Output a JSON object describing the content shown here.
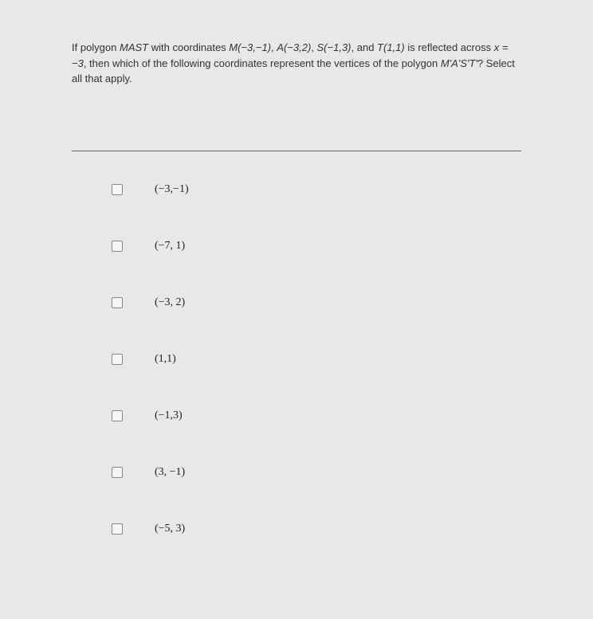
{
  "question": {
    "text_prefix": "If polygon ",
    "polygon_name": "MAST",
    "text_mid1": " with coordinates ",
    "coord_M": "M(−3,−1)",
    "sep1": ", ",
    "coord_A": "A(−3,2)",
    "sep2": ", ",
    "coord_S": "S(−1,3)",
    "sep3": ", and ",
    "coord_T": "T(1,1)",
    "text_mid2": " is reflected across ",
    "reflect_line": "x = −3",
    "text_mid3": ", then which of the following coordinates represent the vertices of the polygon ",
    "polygon_prime": "M'A'S'T'",
    "text_end": "? Select all that apply."
  },
  "options": [
    {
      "label": "(−3,−1)"
    },
    {
      "label": "(−7, 1)"
    },
    {
      "label": "(−3, 2)"
    },
    {
      "label": "(1,1)"
    },
    {
      "label": "(−1,3)"
    },
    {
      "label": "(3, −1)"
    },
    {
      "label": "(−5, 3)"
    }
  ],
  "colors": {
    "background": "#e8e8e8",
    "text": "#333333",
    "divider": "#666666",
    "checkbox_border": "#888888"
  }
}
